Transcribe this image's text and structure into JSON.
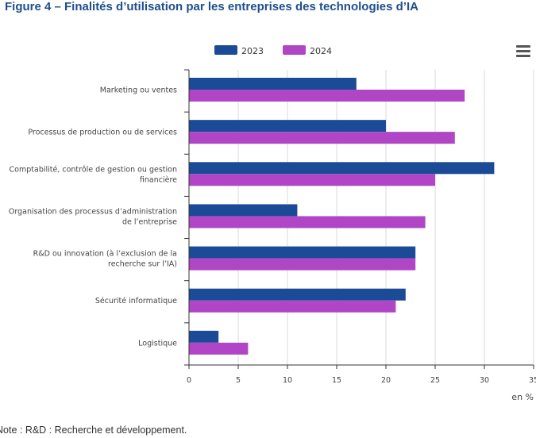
{
  "title": "Figure 4 – Finalités d’utilisation par les entreprises des technologies d’IA",
  "note": "Note : R&D : Recherche et développement.",
  "menu_icon": "hamburger-menu-icon",
  "colors": {
    "2023": "#1b4a96",
    "2024": "#b046c6",
    "grid": "#d9d9d9",
    "axis": "#333333"
  },
  "chart_data": {
    "type": "bar",
    "orientation": "horizontal",
    "categories": [
      "Marketing ou ventes",
      "Processus de production ou de services",
      "Comptabilité, contrôle de gestion ou gestion financière",
      "Organisation des processus d’administration de l’entreprise",
      "R&D ou innovation (à l’exclusion de la recherche sur l’IA)",
      "Sécurité informatique",
      "Logistique"
    ],
    "category_lines": [
      [
        "Marketing ou ventes"
      ],
      [
        "Processus de production ou de services"
      ],
      [
        "Comptabilité, contrôle de gestion ou gestion",
        "financière"
      ],
      [
        "Organisation des processus d’administration",
        "de l’entreprise"
      ],
      [
        "R&D ou innovation (à l’exclusion de la",
        "recherche sur l’IA)"
      ],
      [
        "Sécurité informatique"
      ],
      [
        "Logistique"
      ]
    ],
    "series": [
      {
        "name": "2023",
        "values": [
          17,
          20,
          31,
          11,
          23,
          22,
          3
        ]
      },
      {
        "name": "2024",
        "values": [
          28,
          27,
          25,
          24,
          23,
          21,
          6
        ]
      }
    ],
    "xlim": [
      0,
      35
    ],
    "xticks": [
      "0",
      "5",
      "10",
      "15",
      "20",
      "25",
      "30",
      "35"
    ],
    "unit": "en %",
    "grid": true,
    "legend_position": "top"
  }
}
